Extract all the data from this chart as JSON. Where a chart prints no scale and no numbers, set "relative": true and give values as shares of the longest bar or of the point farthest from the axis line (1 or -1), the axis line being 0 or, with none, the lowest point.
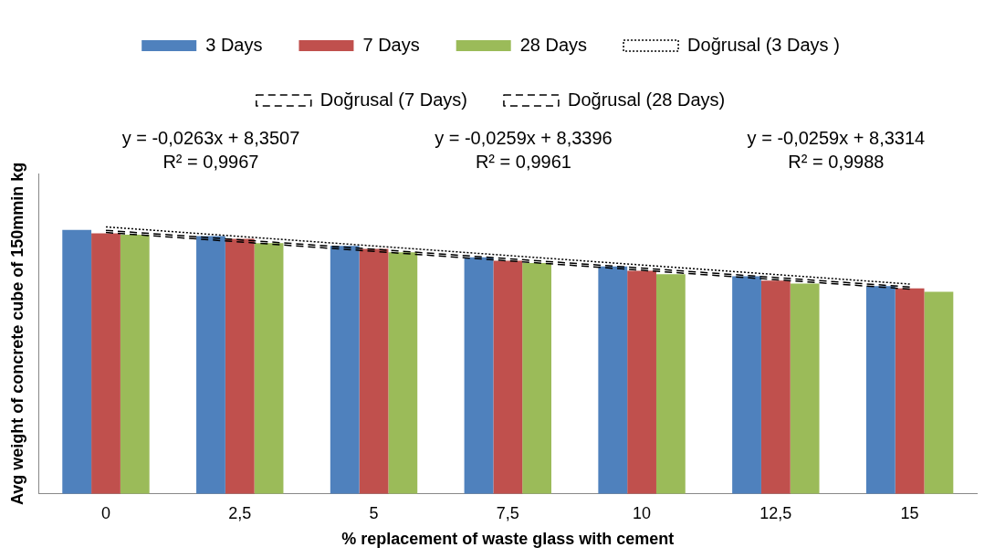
{
  "chart_data": {
    "type": "bar",
    "xlabel": "% replacement of waste glass with cement",
    "ylabel": "Avg weight of concrete cube of 150mmin kg",
    "categories": [
      "0",
      "2,5",
      "5",
      "7,5",
      "10",
      "12,5",
      "15"
    ],
    "series": [
      {
        "name": "3 Days",
        "color": "#4f81bd",
        "values": [
          0.989,
          0.966,
          0.929,
          0.886,
          0.852,
          0.815,
          0.778
        ]
      },
      {
        "name": "7 Days",
        "color": "#c0504d",
        "values": [
          0.976,
          0.955,
          0.918,
          0.873,
          0.836,
          0.799,
          0.77
        ]
      },
      {
        "name": "28 Days",
        "color": "#9bbb59",
        "values": [
          0.971,
          0.939,
          0.905,
          0.865,
          0.823,
          0.788,
          0.757
        ]
      },
      {
        "name": "Doğrusal (3 Days )",
        "type": "line",
        "color": "#000000",
        "line_style": "dotted",
        "x": [
          "0",
          "15"
        ],
        "values": [
          1,
          0.786
        ]
      },
      {
        "name": "Doğrusal (7 Days)",
        "type": "line",
        "color": "#000000",
        "line_style": "dashed",
        "x": [
          "0",
          "15"
        ],
        "values": [
          0.987,
          0.775
        ]
      },
      {
        "name": "Doğrusal (28 Days)",
        "type": "line",
        "color": "#000000",
        "line_style": "dashed",
        "x": [
          "0",
          "15"
        ],
        "values": [
          0.979,
          0.767
        ]
      }
    ],
    "relative": true,
    "grid": false,
    "legend": "top",
    "marker": "none",
    "annotations": [
      "y = -0,0263x + 8,3507\nR² = 0,9967",
      "y = -0,0259x + 8,3396\nR² = 0,9961",
      "y = -0,0259x + 8,3314\nR² = 0,9988"
    ]
  }
}
